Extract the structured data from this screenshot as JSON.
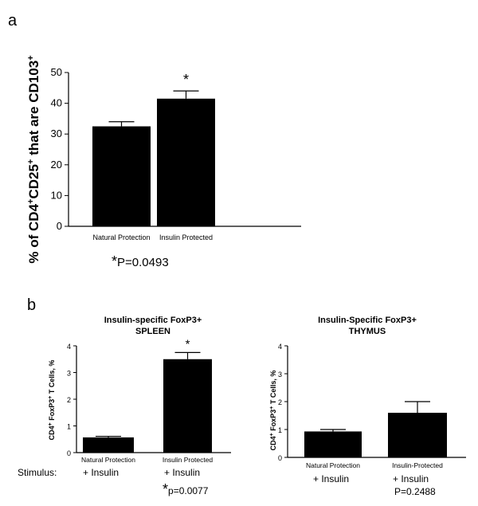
{
  "panels": {
    "a": {
      "letter": "a",
      "ylabel_parts": [
        "% of CD4",
        "+",
        "CD25",
        "+",
        " that are CD103",
        "+"
      ],
      "pvalue_star": "*",
      "pvalue_text": "P=0.0493"
    },
    "b": {
      "letter": "b",
      "stimulus_label": "Stimulus:",
      "left": {
        "title_line1": "Insulin-specific FoxP3+",
        "title_line2": "SPLEEN",
        "ylabel_parts": [
          "CD4",
          "+",
          " FoxP3",
          "+",
          " T Cells, %"
        ],
        "stim_items": [
          "+ Insulin",
          "+ Insulin"
        ],
        "pvalue_star": "*",
        "pvalue_text": "p=0.0077"
      },
      "right": {
        "title_line1": "Insulin-Specific FoxP3+",
        "title_line2": "THYMUS",
        "ylabel_parts": [
          "CD4",
          "+",
          " FoxP3",
          "+",
          " T Cells, %"
        ],
        "stim_items": [
          "+ Insulin",
          "+ Insulin"
        ],
        "pvalue_text": "P=0.2488"
      }
    }
  },
  "chart_data": [
    {
      "id": "a",
      "type": "bar",
      "categories": [
        "Natural Protection",
        "Insulin Protected"
      ],
      "values": [
        32.5,
        41.5
      ],
      "errors": [
        1.5,
        2.5
      ],
      "significance": [
        "",
        "*"
      ],
      "ylim": [
        0,
        50
      ],
      "yticks": [
        0,
        10,
        20,
        30,
        40,
        50
      ],
      "color": "#000000"
    },
    {
      "id": "b-spleen",
      "type": "bar",
      "categories": [
        "Natural Protection",
        "Insulin Protected"
      ],
      "values": [
        0.57,
        3.5
      ],
      "errors": [
        0.04,
        0.25
      ],
      "significance": [
        "",
        "*"
      ],
      "ylim": [
        0,
        4
      ],
      "yticks": [
        0,
        1,
        2,
        3,
        4
      ],
      "color": "#000000"
    },
    {
      "id": "b-thymus",
      "type": "bar",
      "categories": [
        "Natural Protection",
        "Insulin-Protected"
      ],
      "values": [
        0.93,
        1.6
      ],
      "errors": [
        0.07,
        0.4
      ],
      "significance": [
        "",
        ""
      ],
      "ylim": [
        0,
        4
      ],
      "yticks": [
        0,
        1,
        2,
        3,
        4
      ],
      "color": "#000000"
    }
  ]
}
